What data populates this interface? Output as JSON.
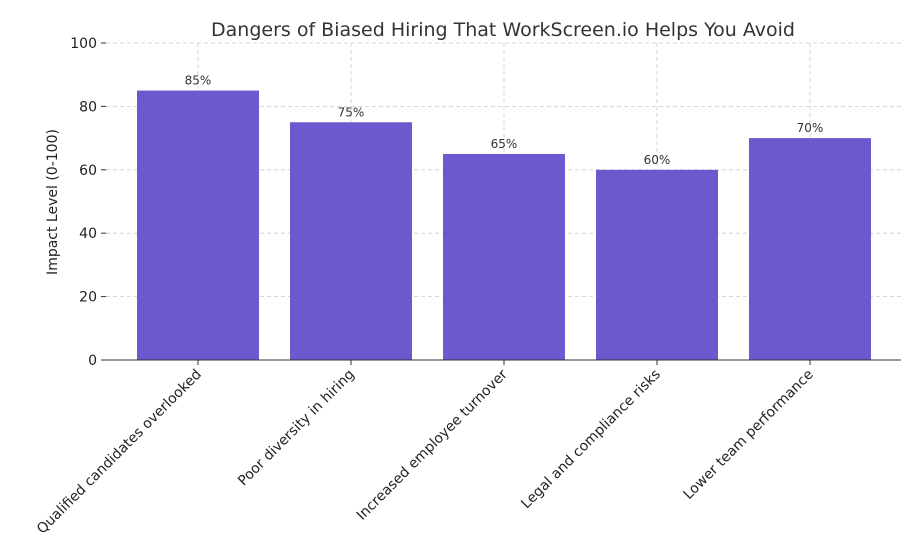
{
  "chart_data": {
    "type": "bar",
    "title": "Dangers of Biased Hiring That WorkScreen.io Helps You Avoid",
    "xlabel": "",
    "ylabel": "Impact Level (0-100)",
    "ylim": [
      0,
      100
    ],
    "yticks": [
      0,
      20,
      40,
      60,
      80,
      100
    ],
    "categories": [
      "Qualified candidates overlooked",
      "Poor diversity in hiring",
      "Increased employee turnover",
      "Legal and compliance risks",
      "Lower team performance"
    ],
    "values": [
      85,
      75,
      65,
      60,
      70
    ],
    "data_labels": [
      "85%",
      "75%",
      "65%",
      "60%",
      "70%"
    ],
    "bar_color": "#6a5acd",
    "grid": true
  }
}
